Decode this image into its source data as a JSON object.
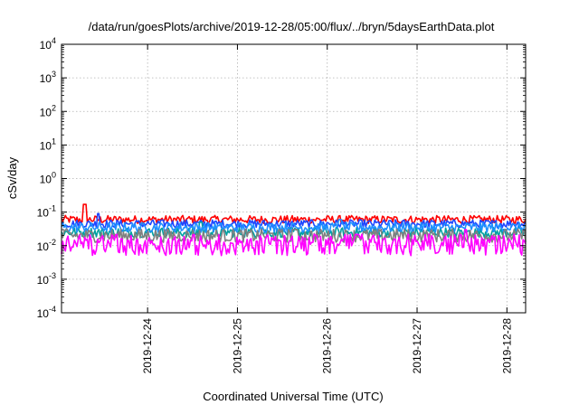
{
  "chart_data": {
    "type": "line",
    "title": "/data/run/goesPlots/archive/2019-12-28/05:00/flux/../bryn/5daysEarthData.plot",
    "xlabel": "Coordinated Universal Time (UTC)",
    "ylabel": "cSv/day",
    "yscale": "log",
    "ylim": [
      0.0001,
      10000
    ],
    "xlim": [
      "2019-12-23T01:00",
      "2019-12-28T05:00"
    ],
    "ytick_labels": [
      {
        "base": "10",
        "exp": "4"
      },
      {
        "base": "10",
        "exp": "3"
      },
      {
        "base": "10",
        "exp": "2"
      },
      {
        "base": "10",
        "exp": "1"
      },
      {
        "base": "10",
        "exp": "0"
      },
      {
        "base": "10",
        "exp": "-1"
      },
      {
        "base": "10",
        "exp": "-2"
      },
      {
        "base": "10",
        "exp": "-3"
      },
      {
        "base": "10",
        "exp": "-4"
      }
    ],
    "xtick_labels": [
      "2019-12-24",
      "2019-12-25",
      "2019-12-26",
      "2019-12-27",
      "2019-12-28"
    ],
    "grid": true,
    "legend": "none",
    "series": [
      {
        "color": "#ff0000",
        "base": 0.06,
        "spread": 0.12,
        "spike": 0.17,
        "spike_at": 0.05
      },
      {
        "color": "#1e46ff",
        "base": 0.045,
        "spread": 0.12,
        "spike": 0.09,
        "spike_at": 0.08
      },
      {
        "color": "#00a0a0",
        "base": 0.025,
        "spread": 0.15,
        "spike": 0.05,
        "spike_at": 0.3
      },
      {
        "color": "#1e90ff",
        "base": 0.035,
        "spread": 0.15,
        "spike": 0.06,
        "spike_at": 0.6
      },
      {
        "color": "#808080",
        "base": 0.02,
        "spread": 0.2,
        "spike": 0.03,
        "spike_at": 0.5
      },
      {
        "color": "#ff00ff",
        "base": 0.009,
        "spread": 0.25,
        "dips": 0.017,
        "spike": 0.03,
        "spike_at": 0.87
      }
    ]
  }
}
